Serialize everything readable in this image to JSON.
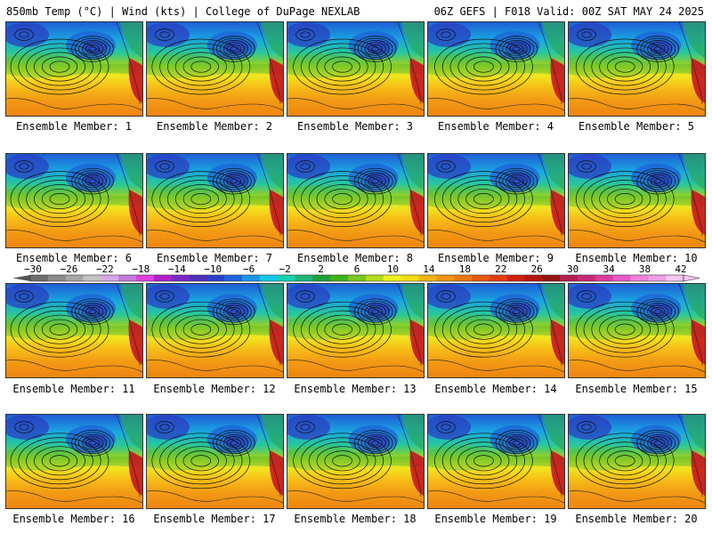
{
  "header": {
    "left": "850mb Temp (°C) | Wind (kts) | College of DuPage NEXLAB",
    "right": "06Z GEFS | F018 Valid: 00Z SAT MAY 24 2025"
  },
  "members": [
    "Ensemble Member: 1",
    "Ensemble Member: 2",
    "Ensemble Member: 3",
    "Ensemble Member: 4",
    "Ensemble Member: 5",
    "Ensemble Member: 6",
    "Ensemble Member: 7",
    "Ensemble Member: 8",
    "Ensemble Member: 9",
    "Ensemble Member: 10",
    "Ensemble Member: 11",
    "Ensemble Member: 12",
    "Ensemble Member: 13",
    "Ensemble Member: 14",
    "Ensemble Member: 15",
    "Ensemble Member: 16",
    "Ensemble Member: 17",
    "Ensemble Member: 18",
    "Ensemble Member: 19",
    "Ensemble Member: 20"
  ],
  "colorbar": {
    "labels": [
      "−30",
      "−26",
      "−22",
      "−18",
      "−14",
      "−10",
      "−6",
      "−2",
      "2",
      "6",
      "10",
      "14",
      "18",
      "22",
      "26",
      "30",
      "34",
      "38",
      "42"
    ],
    "colors": [
      "#6d6d6d",
      "#8a8a8a",
      "#a6a6a6",
      "#c3c3c3",
      "#d8a8e8",
      "#c27ad8",
      "#e040e0",
      "#b020c8",
      "#7a28c8",
      "#5030b8",
      "#2840c8",
      "#1e64e0",
      "#1e96e6",
      "#14c8e6",
      "#18d0b0",
      "#1eb478",
      "#1ea03c",
      "#3cb41e",
      "#78c81e",
      "#b4dc1e",
      "#f0f01e",
      "#fadc14",
      "#f5b414",
      "#f09614",
      "#eb780f",
      "#e65a0f",
      "#e13c0f",
      "#d21e0f",
      "#b4140f",
      "#961414",
      "#b41e50",
      "#c82878",
      "#dc3ca0",
      "#e65ac8",
      "#f082dc",
      "#f0a0e6",
      "#f5c8f0"
    ]
  }
}
